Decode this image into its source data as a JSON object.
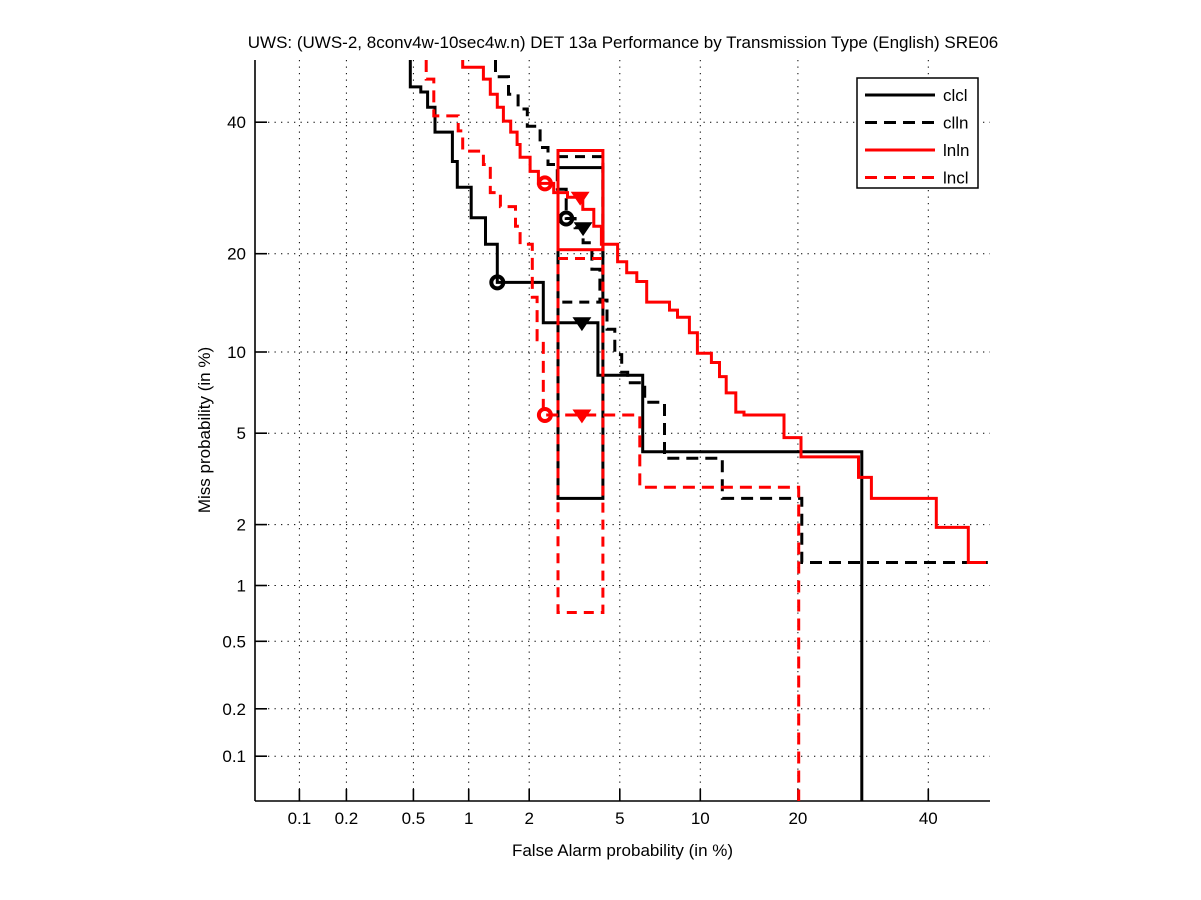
{
  "title": "UWS: (UWS-2, 8conv4w-10sec4w.n) DET 13a Performance by Transmission Type (English) SRE06",
  "chart_data": {
    "type": "line",
    "subtype": "DET-staircase-probit-axes",
    "xlabel": "False Alarm probability (in %)",
    "ylabel": "Miss probability (in %)",
    "x_ticks": [
      0.1,
      0.2,
      0.5,
      1,
      2,
      5,
      10,
      20,
      40
    ],
    "y_ticks": [
      0.1,
      0.2,
      0.5,
      1,
      2,
      5,
      10,
      20,
      40
    ],
    "xlim_pct": [
      0.05,
      51
    ],
    "ylim_pct": [
      0.05,
      51
    ],
    "grid": "dotted",
    "legend_position": "top-right",
    "colors": {
      "black": "#000000",
      "red": "#ff0000"
    },
    "series": [
      {
        "name": "clcl",
        "color": "#000000",
        "dash": "solid",
        "points": [
          [
            0.48,
            51
          ],
          [
            0.48,
            46.2
          ],
          [
            0.55,
            46.2
          ],
          [
            0.55,
            45.3
          ],
          [
            0.6,
            45.3
          ],
          [
            0.6,
            42.6
          ],
          [
            0.66,
            42.6
          ],
          [
            0.66,
            38.3
          ],
          [
            0.82,
            38.3
          ],
          [
            0.82,
            33.4
          ],
          [
            0.87,
            33.4
          ],
          [
            0.87,
            29.3
          ],
          [
            1.03,
            29.3
          ],
          [
            1.03,
            24.8
          ],
          [
            1.22,
            24.8
          ],
          [
            1.22,
            21.2
          ],
          [
            1.4,
            21.2
          ],
          [
            1.4,
            16.6
          ],
          [
            2.33,
            16.6
          ],
          [
            2.33,
            12.5
          ],
          [
            4.06,
            12.5
          ],
          [
            4.06,
            8.3
          ],
          [
            6.16,
            8.3
          ],
          [
            6.16,
            4.2
          ],
          [
            29.0,
            4.2
          ],
          [
            29.0,
            0.05
          ]
        ],
        "circle_marker": [
          1.4,
          16.6
        ],
        "triangle_marker": [
          3.47,
          12.5
        ],
        "box": {
          "fa": [
            2.72,
            4.26
          ],
          "miss": [
            2.64,
            32.4
          ]
        }
      },
      {
        "name": "clln",
        "color": "#000000",
        "dash": "dashed",
        "points": [
          [
            1.37,
            51
          ],
          [
            1.37,
            48.0
          ],
          [
            1.59,
            48.0
          ],
          [
            1.59,
            44.9
          ],
          [
            1.77,
            44.9
          ],
          [
            1.77,
            42.3
          ],
          [
            1.96,
            42.3
          ],
          [
            1.96,
            39.3
          ],
          [
            2.25,
            39.3
          ],
          [
            2.25,
            35.7
          ],
          [
            2.45,
            35.7
          ],
          [
            2.45,
            32.9
          ],
          [
            2.7,
            32.9
          ],
          [
            2.7,
            29.0
          ],
          [
            2.96,
            29.0
          ],
          [
            2.96,
            24.7
          ],
          [
            3.24,
            24.7
          ],
          [
            3.24,
            23.4
          ],
          [
            3.51,
            23.4
          ],
          [
            3.51,
            21.4
          ],
          [
            3.83,
            21.4
          ],
          [
            3.83,
            18.1
          ],
          [
            4.14,
            18.1
          ],
          [
            4.14,
            14.7
          ],
          [
            4.43,
            14.7
          ],
          [
            4.43,
            11.9
          ],
          [
            4.77,
            11.9
          ],
          [
            4.77,
            9.8
          ],
          [
            5.09,
            9.8
          ],
          [
            5.09,
            8.5
          ],
          [
            5.38,
            8.5
          ],
          [
            5.38,
            7.8
          ],
          [
            6.27,
            7.8
          ],
          [
            6.27,
            6.6
          ],
          [
            7.45,
            6.6
          ],
          [
            7.45,
            3.95
          ],
          [
            11.85,
            3.95
          ],
          [
            11.85,
            2.64
          ],
          [
            20.5,
            2.64
          ],
          [
            20.5,
            1.31
          ],
          [
            50.6,
            1.31
          ]
        ],
        "circle_marker": [
          2.96,
          24.7
        ],
        "triangle_marker": [
          3.51,
          23.4
        ],
        "box": {
          "fa": [
            2.72,
            4.26
          ],
          "miss": [
            14.5,
            34.2
          ]
        }
      },
      {
        "name": "lnln",
        "color": "#ff0000",
        "dash": "solid",
        "points": [
          [
            0.93,
            51
          ],
          [
            0.93,
            49.7
          ],
          [
            1.19,
            49.7
          ],
          [
            1.19,
            47.6
          ],
          [
            1.29,
            47.6
          ],
          [
            1.29,
            44.9
          ],
          [
            1.4,
            44.9
          ],
          [
            1.4,
            42.6
          ],
          [
            1.5,
            42.6
          ],
          [
            1.5,
            40.2
          ],
          [
            1.63,
            40.2
          ],
          [
            1.63,
            38.3
          ],
          [
            1.75,
            38.3
          ],
          [
            1.75,
            36.2
          ],
          [
            1.81,
            36.2
          ],
          [
            1.81,
            34.1
          ],
          [
            2.02,
            34.1
          ],
          [
            2.02,
            31.8
          ],
          [
            2.21,
            31.8
          ],
          [
            2.21,
            29.9
          ],
          [
            2.6,
            29.9
          ],
          [
            2.6,
            28.5
          ],
          [
            3.0,
            28.5
          ],
          [
            3.0,
            27.8
          ],
          [
            3.5,
            27.8
          ],
          [
            3.5,
            26.0
          ],
          [
            3.9,
            26.0
          ],
          [
            3.9,
            23.6
          ],
          [
            4.2,
            23.6
          ],
          [
            4.2,
            21.2
          ],
          [
            4.9,
            21.2
          ],
          [
            4.9,
            19.0
          ],
          [
            5.33,
            19.0
          ],
          [
            5.33,
            17.7
          ],
          [
            5.84,
            17.7
          ],
          [
            5.84,
            16.7
          ],
          [
            6.38,
            16.7
          ],
          [
            6.38,
            14.5
          ],
          [
            7.77,
            14.5
          ],
          [
            7.77,
            13.7
          ],
          [
            8.31,
            13.7
          ],
          [
            8.31,
            13.0
          ],
          [
            9.16,
            13.0
          ],
          [
            9.16,
            11.6
          ],
          [
            9.77,
            11.6
          ],
          [
            9.77,
            9.9
          ],
          [
            10.9,
            9.9
          ],
          [
            10.9,
            9.2
          ],
          [
            11.6,
            9.2
          ],
          [
            11.6,
            8.2
          ],
          [
            12.2,
            8.2
          ],
          [
            12.2,
            7.15
          ],
          [
            13.1,
            7.15
          ],
          [
            13.1,
            6.05
          ],
          [
            13.9,
            6.05
          ],
          [
            13.9,
            5.9
          ],
          [
            18.3,
            5.9
          ],
          [
            18.3,
            4.8
          ],
          [
            20.4,
            4.8
          ],
          [
            20.4,
            4.0
          ],
          [
            28.5,
            4.0
          ],
          [
            28.5,
            3.27
          ],
          [
            30.5,
            3.27
          ],
          [
            30.5,
            2.64
          ],
          [
            41.4,
            2.64
          ],
          [
            41.4,
            1.94
          ],
          [
            47.1,
            1.94
          ],
          [
            47.1,
            1.31
          ],
          [
            50.3,
            1.31
          ]
        ],
        "circle_marker": [
          2.37,
          29.9
        ],
        "triangle_marker": [
          3.41,
          27.8
        ],
        "box": {
          "fa": [
            2.72,
            4.26
          ],
          "miss": [
            20.5,
            35.2
          ]
        }
      },
      {
        "name": "lncl",
        "color": "#ff0000",
        "dash": "dashed",
        "points": [
          [
            0.59,
            51
          ],
          [
            0.59,
            47.6
          ],
          [
            0.65,
            47.6
          ],
          [
            0.65,
            41.1
          ],
          [
            0.88,
            41.1
          ],
          [
            0.88,
            38.5
          ],
          [
            0.93,
            38.5
          ],
          [
            0.93,
            35.1
          ],
          [
            1.19,
            35.1
          ],
          [
            1.19,
            32.9
          ],
          [
            1.29,
            32.9
          ],
          [
            1.29,
            28.5
          ],
          [
            1.45,
            28.5
          ],
          [
            1.45,
            26.4
          ],
          [
            1.72,
            26.4
          ],
          [
            1.72,
            23.6
          ],
          [
            1.81,
            23.6
          ],
          [
            1.81,
            21.2
          ],
          [
            2.07,
            21.2
          ],
          [
            2.07,
            15.0
          ],
          [
            2.18,
            15.0
          ],
          [
            2.18,
            11.0
          ],
          [
            2.33,
            11.0
          ],
          [
            2.33,
            5.9
          ],
          [
            6.0,
            5.9
          ],
          [
            6.0,
            2.96
          ],
          [
            20.1,
            2.96
          ],
          [
            20.1,
            0.05
          ]
        ],
        "circle_marker": [
          2.37,
          5.9
        ],
        "triangle_marker": [
          3.47,
          5.9
        ],
        "box": {
          "fa": [
            2.72,
            4.26
          ],
          "miss": [
            0.72,
            19.4
          ]
        }
      }
    ],
    "legend": {
      "labels": [
        "clcl",
        "clln",
        "lnln",
        "lncl"
      ]
    }
  }
}
